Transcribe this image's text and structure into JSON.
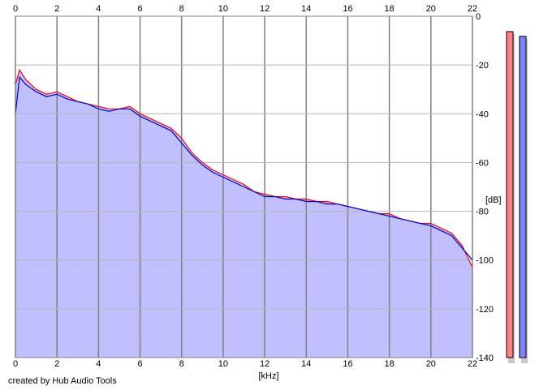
{
  "credit": "created by Hub Audio Tools",
  "chart_data": {
    "type": "area",
    "title": "",
    "xlabel": "[kHz]",
    "ylabel": "[dB]",
    "xlim": [
      0,
      22
    ],
    "ylim": [
      -140,
      0
    ],
    "x_ticks": [
      "0",
      "2",
      "4",
      "6",
      "8",
      "10",
      "12",
      "14",
      "16",
      "18",
      "20",
      "22"
    ],
    "y_ticks": [
      "0",
      "-20",
      "-40",
      "-60",
      "-80",
      "-100",
      "-120",
      "-140"
    ],
    "grid": true,
    "fill_color": "#c0c0ff",
    "series": [
      {
        "color": "#ff0000",
        "x": [
          0,
          0.2,
          0.5,
          1,
          1.5,
          2,
          2.5,
          3,
          3.5,
          4,
          4.5,
          5,
          5.5,
          6,
          6.5,
          7,
          7.5,
          8,
          8.5,
          9,
          9.5,
          10,
          10.5,
          11,
          11.5,
          12,
          12.5,
          13,
          13.5,
          14,
          14.5,
          15,
          15.5,
          16,
          16.5,
          17,
          17.5,
          18,
          18.5,
          19,
          19.5,
          20,
          20.5,
          21,
          21.5,
          22
        ],
        "values": [
          -28,
          -22,
          -26,
          -30,
          -32,
          -31,
          -33,
          -35,
          -36,
          -37,
          -38,
          -38,
          -37,
          -40,
          -42,
          -44,
          -46,
          -50,
          -56,
          -60,
          -63,
          -65,
          -67,
          -69,
          -72,
          -73,
          -74,
          -74,
          -75,
          -75,
          -76,
          -76,
          -77,
          -78,
          -79,
          -80,
          -81,
          -81,
          -83,
          -84,
          -85,
          -85,
          -87,
          -89,
          -94,
          -103
        ]
      },
      {
        "color": "#0000cc",
        "x": [
          0,
          0.2,
          0.5,
          1,
          1.5,
          2,
          2.5,
          3,
          3.5,
          4,
          4.5,
          5,
          5.5,
          6,
          6.5,
          7,
          7.5,
          8,
          8.5,
          9,
          9.5,
          10,
          10.5,
          11,
          11.5,
          12,
          12.5,
          13,
          13.5,
          14,
          14.5,
          15,
          15.5,
          16,
          16.5,
          17,
          17.5,
          18,
          18.5,
          19,
          19.5,
          20,
          20.5,
          21,
          21.5,
          22
        ],
        "values": [
          -40,
          -25,
          -28,
          -31,
          -33,
          -32,
          -34,
          -35,
          -36,
          -38,
          -39,
          -38,
          -38,
          -41,
          -43,
          -45,
          -47,
          -52,
          -57,
          -61,
          -64,
          -66,
          -68,
          -70,
          -72,
          -74,
          -74,
          -75,
          -75,
          -76,
          -76,
          -77,
          -77,
          -78,
          -79,
          -80,
          -81,
          -82,
          -83,
          -84,
          -85,
          -86,
          -88,
          -90,
          -95,
          -100
        ]
      }
    ]
  },
  "meters": [
    {
      "color": "#ff8080",
      "level": 0.971
    },
    {
      "color": "#8080ff",
      "level": 0.957
    }
  ]
}
